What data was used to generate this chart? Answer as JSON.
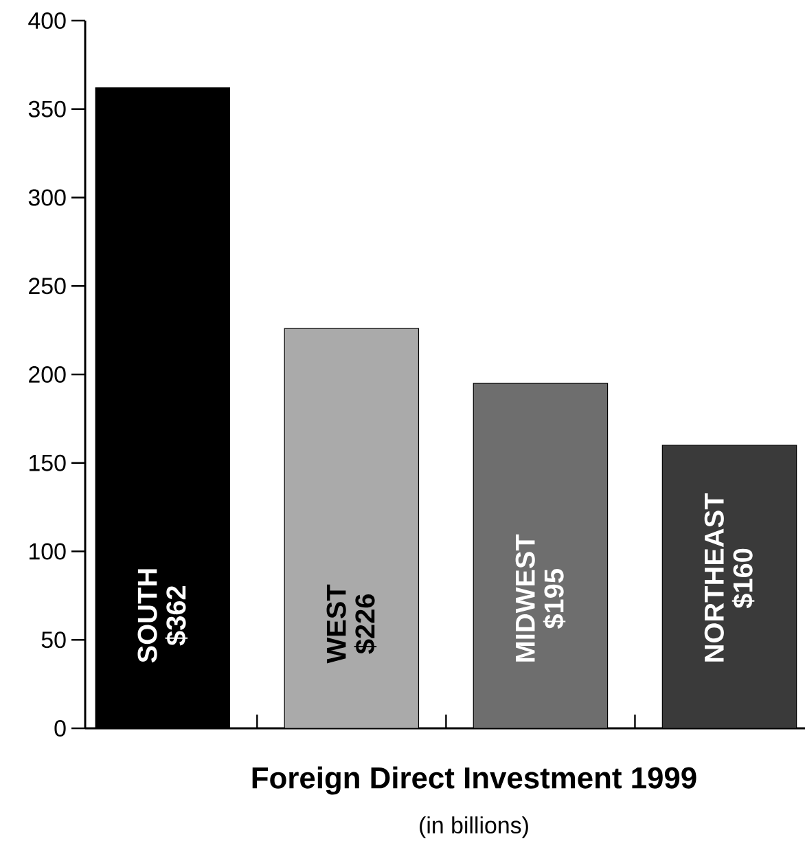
{
  "chart_data": {
    "type": "bar",
    "title": "Foreign Direct Investment 1999",
    "subtitle": "(in billions)",
    "categories": [
      "SOUTH",
      "WEST",
      "MIDWEST",
      "NORTHEAST"
    ],
    "values": [
      362,
      226,
      195,
      160
    ],
    "colors": [
      "#000000",
      "#aaaaaa",
      "#6e6e6e",
      "#3a3a3a"
    ],
    "value_labels": [
      "$362",
      "$226",
      "$195",
      "$160"
    ],
    "ylim": [
      0,
      400
    ],
    "yticks": [
      0,
      50,
      100,
      150,
      200,
      250,
      300,
      350,
      400
    ],
    "grid": false
  }
}
